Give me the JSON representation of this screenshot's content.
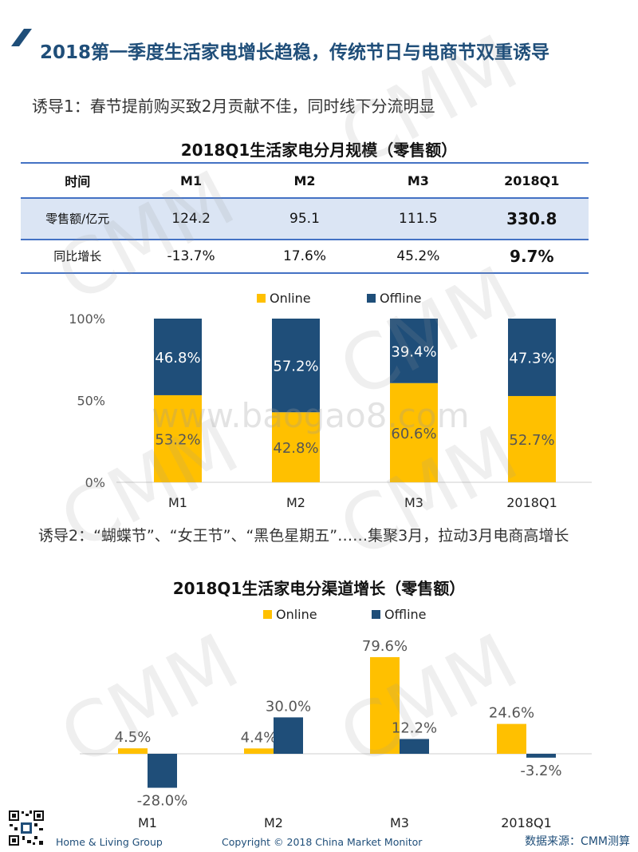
{
  "header": {
    "title": "2018第一季度生活家电增长趋稳，传统节日与电商节双重诱导",
    "subtitle1": "诱导1：春节提前购买致2月贡献不佳，同时线下分流明显",
    "subtitle2": "诱导2：“蝴蝶节”、“女王节”、“黑色星期五”……集聚3月，拉动3月电商高增长"
  },
  "table": {
    "title": "2018Q1生活家电分月规模（零售额）",
    "headers": [
      "时间",
      "M1",
      "M2",
      "M3",
      "2018Q1"
    ],
    "rows": [
      {
        "label": "零售额/亿元",
        "values": [
          "124.2",
          "95.1",
          "111.5",
          "330.8"
        ]
      },
      {
        "label": "同比增长",
        "values": [
          "-13.7%",
          "17.6%",
          "45.2%",
          "9.7%"
        ]
      }
    ]
  },
  "chart_data": [
    {
      "type": "bar",
      "stacked": true,
      "categories": [
        "M1",
        "M2",
        "M3",
        "2018Q1"
      ],
      "series": [
        {
          "name": "Online",
          "values": [
            53.2,
            42.8,
            60.6,
            52.7
          ],
          "labels": [
            "53.2%",
            "42.8%",
            "60.6%",
            "52.7%"
          ],
          "color": "#ffc000"
        },
        {
          "name": "Offline",
          "values": [
            46.8,
            57.2,
            39.4,
            47.3
          ],
          "labels": [
            "46.8%",
            "57.2%",
            "39.4%",
            "47.3%"
          ],
          "color": "#1f4e79"
        }
      ],
      "ylim": [
        0,
        100
      ],
      "yticks": [
        "0%",
        "50%",
        "100%"
      ],
      "legend": "top-center"
    },
    {
      "type": "bar",
      "title": "2018Q1生活家电分渠道增长（零售额）",
      "categories": [
        "M1",
        "M2",
        "M3",
        "2018Q1"
      ],
      "series": [
        {
          "name": "Online",
          "values": [
            4.5,
            4.4,
            79.6,
            24.6
          ],
          "labels": [
            "4.5%",
            "4.4%",
            "79.6%",
            "24.6%"
          ],
          "color": "#ffc000"
        },
        {
          "name": "Offline",
          "values": [
            -28.0,
            30.0,
            12.2,
            -3.2
          ],
          "labels": [
            "-28.0%",
            "30.0%",
            "12.2%",
            "-3.2%"
          ],
          "color": "#1f4e79"
        }
      ],
      "legend": "top-center"
    }
  ],
  "watermark": {
    "brand": "CMM",
    "site": "www.baogao8.com"
  },
  "footer": {
    "group": "Home & Living Group",
    "copyright": "Copyright © 2018 China Market Monitor",
    "source": "数据来源：CMM测算"
  }
}
